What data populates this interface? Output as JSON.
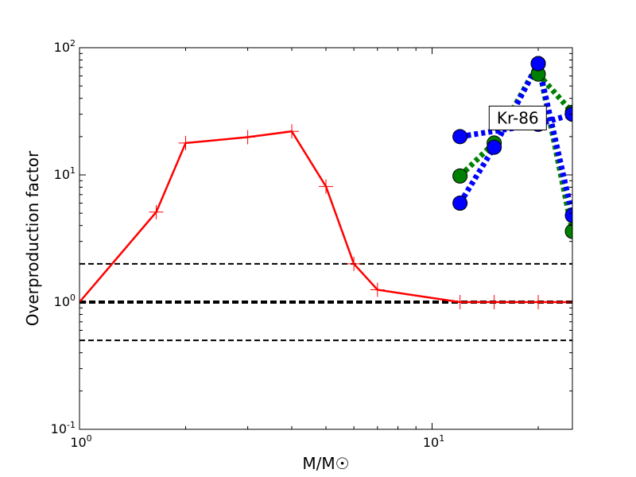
{
  "chart_data": {
    "type": "line",
    "xscale": "log",
    "yscale": "log",
    "xlim": [
      1,
      25
    ],
    "ylim": [
      0.1,
      100
    ],
    "xlabel": "M/M☉",
    "ylabel": "Overproduction factor",
    "x_ticks": [
      {
        "value": 1,
        "base": "10",
        "exp": "0"
      },
      {
        "value": 10,
        "base": "10",
        "exp": "1"
      }
    ],
    "y_ticks": [
      {
        "value": 0.1,
        "base": "10",
        "exp": "-1"
      },
      {
        "value": 1,
        "base": "10",
        "exp": "0"
      },
      {
        "value": 10,
        "base": "10",
        "exp": "1"
      },
      {
        "value": 100,
        "base": "10",
        "exp": "2"
      }
    ],
    "reference_lines": [
      {
        "y": 2,
        "style": "dashed",
        "width": "thin",
        "color": "#000000"
      },
      {
        "y": 1,
        "style": "dashed",
        "width": "thick",
        "color": "#000000"
      },
      {
        "y": 0.5,
        "style": "dashed",
        "width": "thin",
        "color": "#000000"
      }
    ],
    "series": [
      {
        "marker": "plus",
        "line": "solid",
        "color": "#ff0000",
        "x": [
          1,
          1.65,
          2,
          3,
          4,
          5,
          6,
          7,
          12,
          15,
          20,
          25
        ],
        "y": [
          1,
          5.1,
          17.8,
          19.8,
          22,
          8.1,
          2.0,
          1.25,
          1.0,
          1.0,
          1.0,
          1.0
        ]
      },
      {
        "marker": "circle",
        "line": "dotted",
        "color": "#008000",
        "x": [
          12,
          15,
          20,
          25
        ],
        "y": [
          9.8,
          17.8,
          75,
          3.6
        ]
      },
      {
        "marker": "circle",
        "line": "dotted",
        "color": "#008000",
        "x": [
          20,
          25
        ],
        "y": [
          62,
          31
        ]
      },
      {
        "marker": "circle",
        "line": "dotted",
        "color": "#0000ff",
        "x": [
          12,
          15,
          20,
          25
        ],
        "y": [
          6.0,
          16.5,
          75,
          4.8
        ]
      },
      {
        "marker": "circle",
        "line": "dotted",
        "color": "#0000ff",
        "x": [
          12,
          20,
          25
        ],
        "y": [
          20,
          25,
          30
        ]
      }
    ],
    "annotations": [
      {
        "text": "Kr-86",
        "x": 17.5,
        "y": 28
      }
    ]
  }
}
